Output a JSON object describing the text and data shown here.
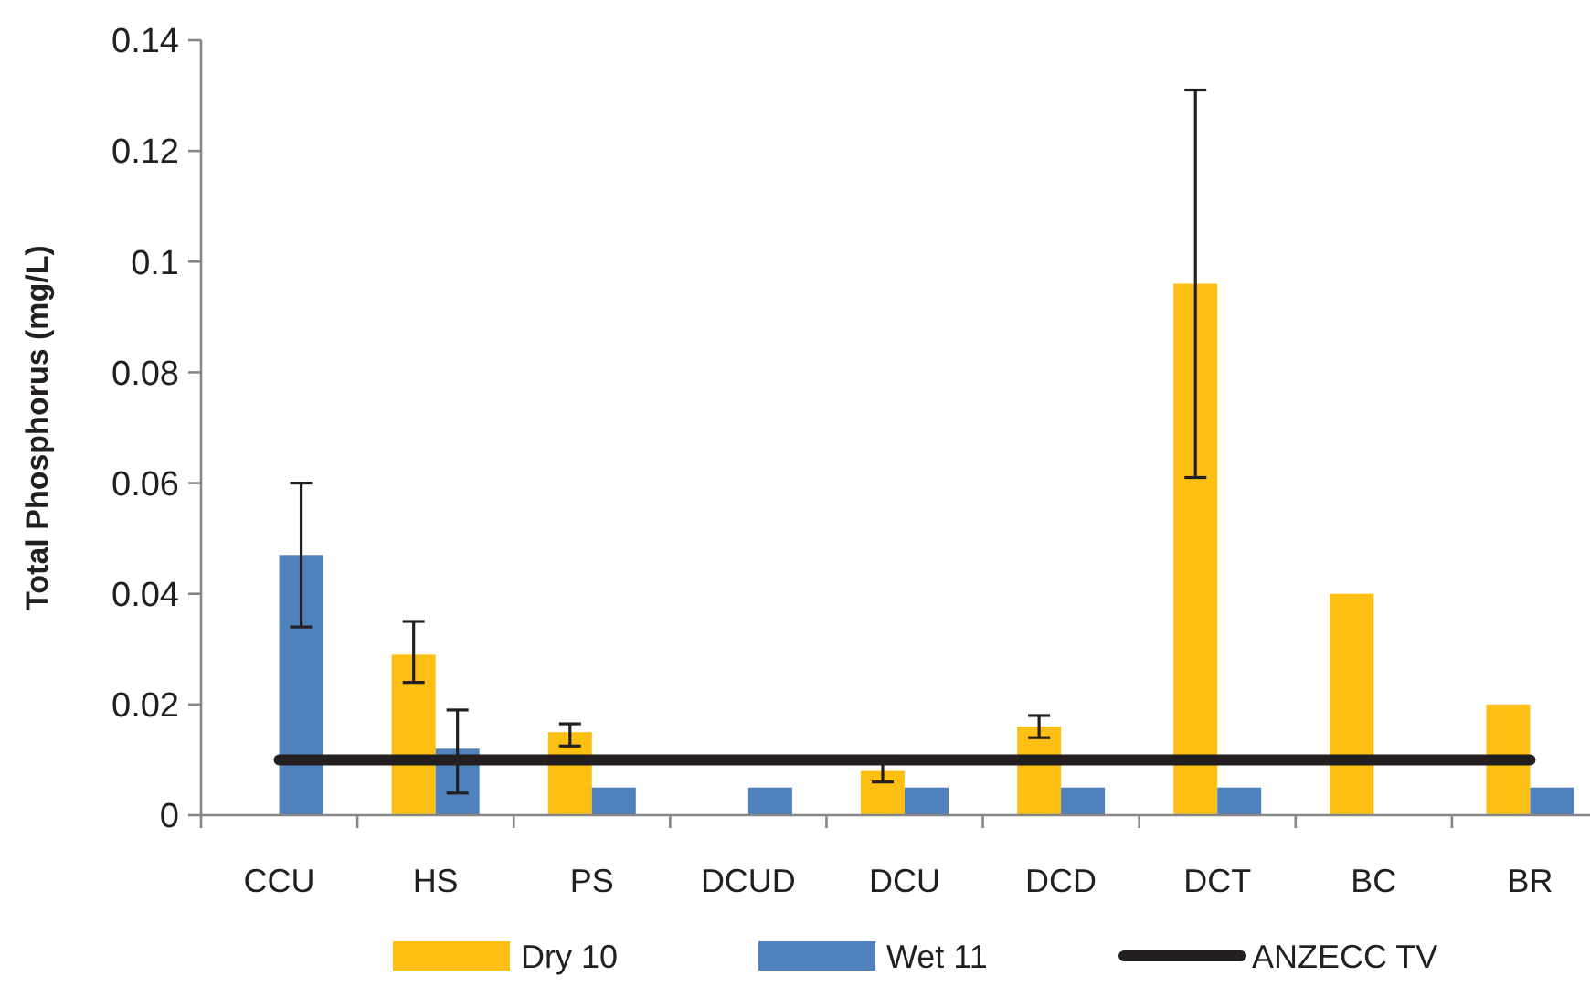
{
  "chart_data": {
    "type": "bar",
    "ylabel": "Total Phosphorus  (mg/L)",
    "categories": [
      "CCU",
      "HS",
      "PS",
      "DCUD",
      "DCU",
      "DCD",
      "DCT",
      "BC",
      "BR"
    ],
    "series": [
      {
        "name": "Dry 10",
        "color": "#fdbf14",
        "values": [
          null,
          0.029,
          0.015,
          null,
          0.008,
          0.016,
          0.096,
          0.04,
          0.02
        ],
        "errors": [
          null,
          [
            0.024,
            0.035
          ],
          [
            0.0125,
            0.0165
          ],
          null,
          [
            0.006,
            0.0105
          ],
          [
            0.014,
            0.018
          ],
          [
            0.061,
            0.131
          ],
          null,
          null
        ]
      },
      {
        "name": "Wet 11",
        "color": "#4f81bd",
        "values": [
          0.047,
          0.012,
          0.005,
          0.005,
          0.005,
          0.005,
          0.005,
          null,
          0.005
        ],
        "errors": [
          [
            0.034,
            0.06
          ],
          [
            0.004,
            0.019
          ],
          null,
          null,
          null,
          null,
          null,
          null,
          null
        ]
      },
      {
        "name": "ANZECC TV",
        "type": "line",
        "color": "#231f20",
        "values": [
          0.01,
          0.01,
          0.01,
          0.01,
          0.01,
          0.01,
          0.01,
          0.01,
          0.01
        ]
      }
    ],
    "ylim": [
      0,
      0.14
    ],
    "yticks": [
      0,
      0.02,
      0.04,
      0.06,
      0.08,
      0.1,
      0.12,
      0.14
    ],
    "grid": false,
    "legend": "bottom"
  }
}
